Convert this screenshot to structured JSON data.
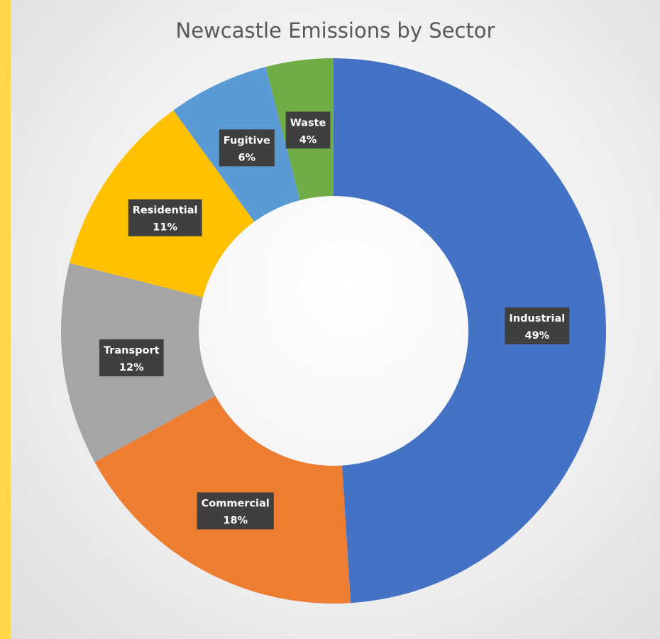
{
  "chart_data": {
    "type": "pie",
    "variant": "donut",
    "title": "Newcastle Emissions by Sector",
    "slices": [
      {
        "label": "Industrial",
        "value": 49,
        "value_label": "49%",
        "color": "#4472c4"
      },
      {
        "label": "Commercial",
        "value": 18,
        "value_label": "18%",
        "color": "#ed7d31"
      },
      {
        "label": "Transport",
        "value": 12,
        "value_label": "12%",
        "color": "#a5a5a5"
      },
      {
        "label": "Residential",
        "value": 11,
        "value_label": "11%",
        "color": "#ffc000"
      },
      {
        "label": "Fugitive",
        "value": 6,
        "value_label": "6%",
        "color": "#5b9bd5"
      },
      {
        "label": "Waste",
        "value": 4,
        "value_label": "4%",
        "color": "#70ad47"
      }
    ],
    "legend": "none"
  }
}
